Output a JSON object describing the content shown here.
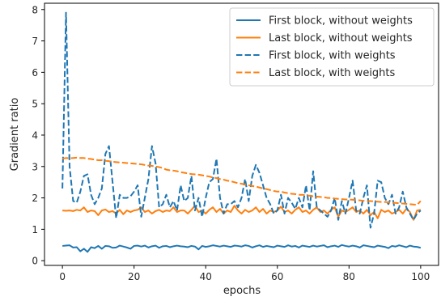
{
  "chart_data": {
    "type": "line",
    "xlabel": "epochs",
    "ylabel": "Gradient ratio",
    "xlim": [
      -5,
      105
    ],
    "ylim": [
      -0.15,
      8.2
    ],
    "xticks": [
      0,
      20,
      40,
      60,
      80,
      100
    ],
    "yticks": [
      0,
      1,
      2,
      3,
      4,
      5,
      6,
      7,
      8
    ],
    "grid": false,
    "legend_position": "top-right",
    "x": [
      0,
      1,
      2,
      3,
      4,
      5,
      6,
      7,
      8,
      9,
      10,
      11,
      12,
      13,
      14,
      15,
      16,
      17,
      18,
      19,
      20,
      21,
      22,
      23,
      24,
      25,
      26,
      27,
      28,
      29,
      30,
      31,
      32,
      33,
      34,
      35,
      36,
      37,
      38,
      39,
      40,
      41,
      42,
      43,
      44,
      45,
      46,
      47,
      48,
      49,
      50,
      51,
      52,
      53,
      54,
      55,
      56,
      57,
      58,
      59,
      60,
      61,
      62,
      63,
      64,
      65,
      66,
      67,
      68,
      69,
      70,
      71,
      72,
      73,
      74,
      75,
      76,
      77,
      78,
      79,
      80,
      81,
      82,
      83,
      84,
      85,
      86,
      87,
      88,
      89,
      90,
      91,
      92,
      93,
      94,
      95,
      96,
      97,
      98,
      99,
      100
    ],
    "series": [
      {
        "name": "First block, without weights",
        "color": "#1f77b4",
        "linestyle": "solid",
        "values": [
          0.47,
          0.48,
          0.49,
          0.42,
          0.43,
          0.3,
          0.38,
          0.28,
          0.43,
          0.4,
          0.47,
          0.38,
          0.47,
          0.46,
          0.41,
          0.42,
          0.48,
          0.45,
          0.42,
          0.38,
          0.47,
          0.48,
          0.45,
          0.48,
          0.42,
          0.46,
          0.48,
          0.41,
          0.46,
          0.47,
          0.43,
          0.46,
          0.48,
          0.46,
          0.45,
          0.43,
          0.47,
          0.45,
          0.36,
          0.47,
          0.44,
          0.46,
          0.49,
          0.47,
          0.45,
          0.48,
          0.46,
          0.44,
          0.48,
          0.47,
          0.45,
          0.49,
          0.47,
          0.42,
          0.46,
          0.49,
          0.44,
          0.47,
          0.45,
          0.43,
          0.48,
          0.46,
          0.44,
          0.49,
          0.45,
          0.47,
          0.42,
          0.48,
          0.46,
          0.44,
          0.48,
          0.45,
          0.47,
          0.49,
          0.43,
          0.46,
          0.48,
          0.44,
          0.5,
          0.47,
          0.45,
          0.48,
          0.46,
          0.42,
          0.49,
          0.47,
          0.45,
          0.43,
          0.48,
          0.46,
          0.44,
          0.4,
          0.47,
          0.45,
          0.49,
          0.46,
          0.43,
          0.48,
          0.45,
          0.44,
          0.41
        ]
      },
      {
        "name": "Last block, without weights",
        "color": "#ff7f0e",
        "linestyle": "solid",
        "values": [
          1.6,
          1.59,
          1.6,
          1.58,
          1.62,
          1.6,
          1.7,
          1.55,
          1.6,
          1.58,
          1.45,
          1.6,
          1.63,
          1.55,
          1.58,
          1.5,
          1.62,
          1.48,
          1.6,
          1.55,
          1.6,
          1.62,
          1.7,
          1.55,
          1.6,
          1.5,
          1.58,
          1.62,
          1.55,
          1.6,
          1.58,
          1.7,
          1.55,
          1.6,
          1.6,
          1.5,
          1.62,
          1.75,
          1.55,
          1.6,
          1.5,
          1.62,
          1.7,
          1.55,
          1.65,
          1.5,
          1.6,
          1.55,
          1.75,
          1.6,
          1.5,
          1.62,
          1.55,
          1.6,
          1.7,
          1.55,
          1.65,
          1.5,
          1.6,
          1.55,
          1.6,
          1.72,
          1.55,
          1.6,
          1.5,
          1.62,
          1.7,
          1.55,
          1.6,
          1.5,
          1.62,
          1.7,
          1.55,
          1.6,
          1.5,
          1.62,
          1.7,
          1.4,
          1.6,
          1.55,
          1.62,
          1.7,
          1.55,
          1.6,
          1.5,
          1.62,
          1.45,
          1.55,
          1.35,
          1.62,
          1.55,
          1.6,
          1.5,
          1.55,
          1.62,
          1.5,
          1.65,
          1.55,
          1.3,
          1.6,
          1.62
        ]
      },
      {
        "name": "First block, with weights",
        "color": "#1f77b4",
        "linestyle": "dashed",
        "values": [
          2.3,
          7.9,
          3.0,
          1.9,
          1.85,
          2.2,
          2.7,
          2.75,
          2.1,
          1.8,
          2.0,
          2.3,
          3.4,
          3.65,
          2.5,
          1.35,
          2.1,
          2.0,
          2.0,
          2.05,
          2.2,
          2.4,
          1.4,
          2.0,
          2.6,
          3.65,
          3.1,
          1.7,
          1.8,
          2.1,
          1.7,
          1.9,
          1.6,
          2.4,
          1.9,
          2.0,
          2.7,
          1.6,
          2.0,
          1.4,
          2.0,
          2.5,
          2.6,
          3.25,
          2.0,
          1.5,
          1.8,
          1.8,
          1.9,
          1.7,
          2.0,
          2.6,
          1.9,
          2.7,
          3.05,
          2.8,
          2.4,
          2.0,
          1.8,
          1.5,
          1.6,
          2.1,
          1.5,
          2.0,
          1.85,
          1.65,
          2.0,
          1.7,
          2.4,
          1.6,
          2.85,
          1.7,
          1.6,
          1.5,
          1.4,
          1.6,
          2.0,
          1.3,
          1.9,
          1.5,
          2.0,
          2.55,
          1.6,
          1.5,
          2.0,
          2.4,
          1.05,
          1.5,
          2.55,
          2.5,
          2.0,
          1.8,
          2.1,
          1.5,
          1.7,
          2.2,
          1.7,
          1.5,
          1.3,
          1.5,
          1.6
        ]
      },
      {
        "name": "Last block, with weights",
        "color": "#ff7f0e",
        "linestyle": "dashed",
        "values": [
          3.25,
          3.27,
          3.26,
          3.27,
          3.28,
          3.27,
          3.27,
          3.25,
          3.24,
          3.22,
          3.2,
          3.2,
          3.18,
          3.17,
          3.15,
          3.14,
          3.13,
          3.12,
          3.11,
          3.1,
          3.09,
          3.08,
          3.07,
          3.05,
          3.03,
          3.02,
          3.0,
          2.98,
          2.95,
          2.9,
          2.88,
          2.87,
          2.85,
          2.82,
          2.8,
          2.78,
          2.76,
          2.75,
          2.74,
          2.72,
          2.7,
          2.68,
          2.65,
          2.63,
          2.6,
          2.58,
          2.55,
          2.53,
          2.5,
          2.47,
          2.45,
          2.43,
          2.4,
          2.38,
          2.36,
          2.33,
          2.3,
          2.28,
          2.25,
          2.22,
          2.2,
          2.2,
          2.17,
          2.15,
          2.13,
          2.12,
          2.1,
          2.1,
          2.08,
          2.07,
          2.05,
          2.04,
          2.03,
          2.02,
          2.0,
          2.0,
          1.98,
          1.97,
          1.96,
          1.95,
          1.95,
          1.94,
          1.93,
          1.92,
          1.91,
          1.9,
          1.9,
          1.89,
          1.88,
          1.87,
          1.87,
          1.86,
          1.85,
          1.84,
          1.83,
          1.82,
          1.81,
          1.8,
          1.79,
          1.78,
          1.9
        ]
      }
    ]
  }
}
